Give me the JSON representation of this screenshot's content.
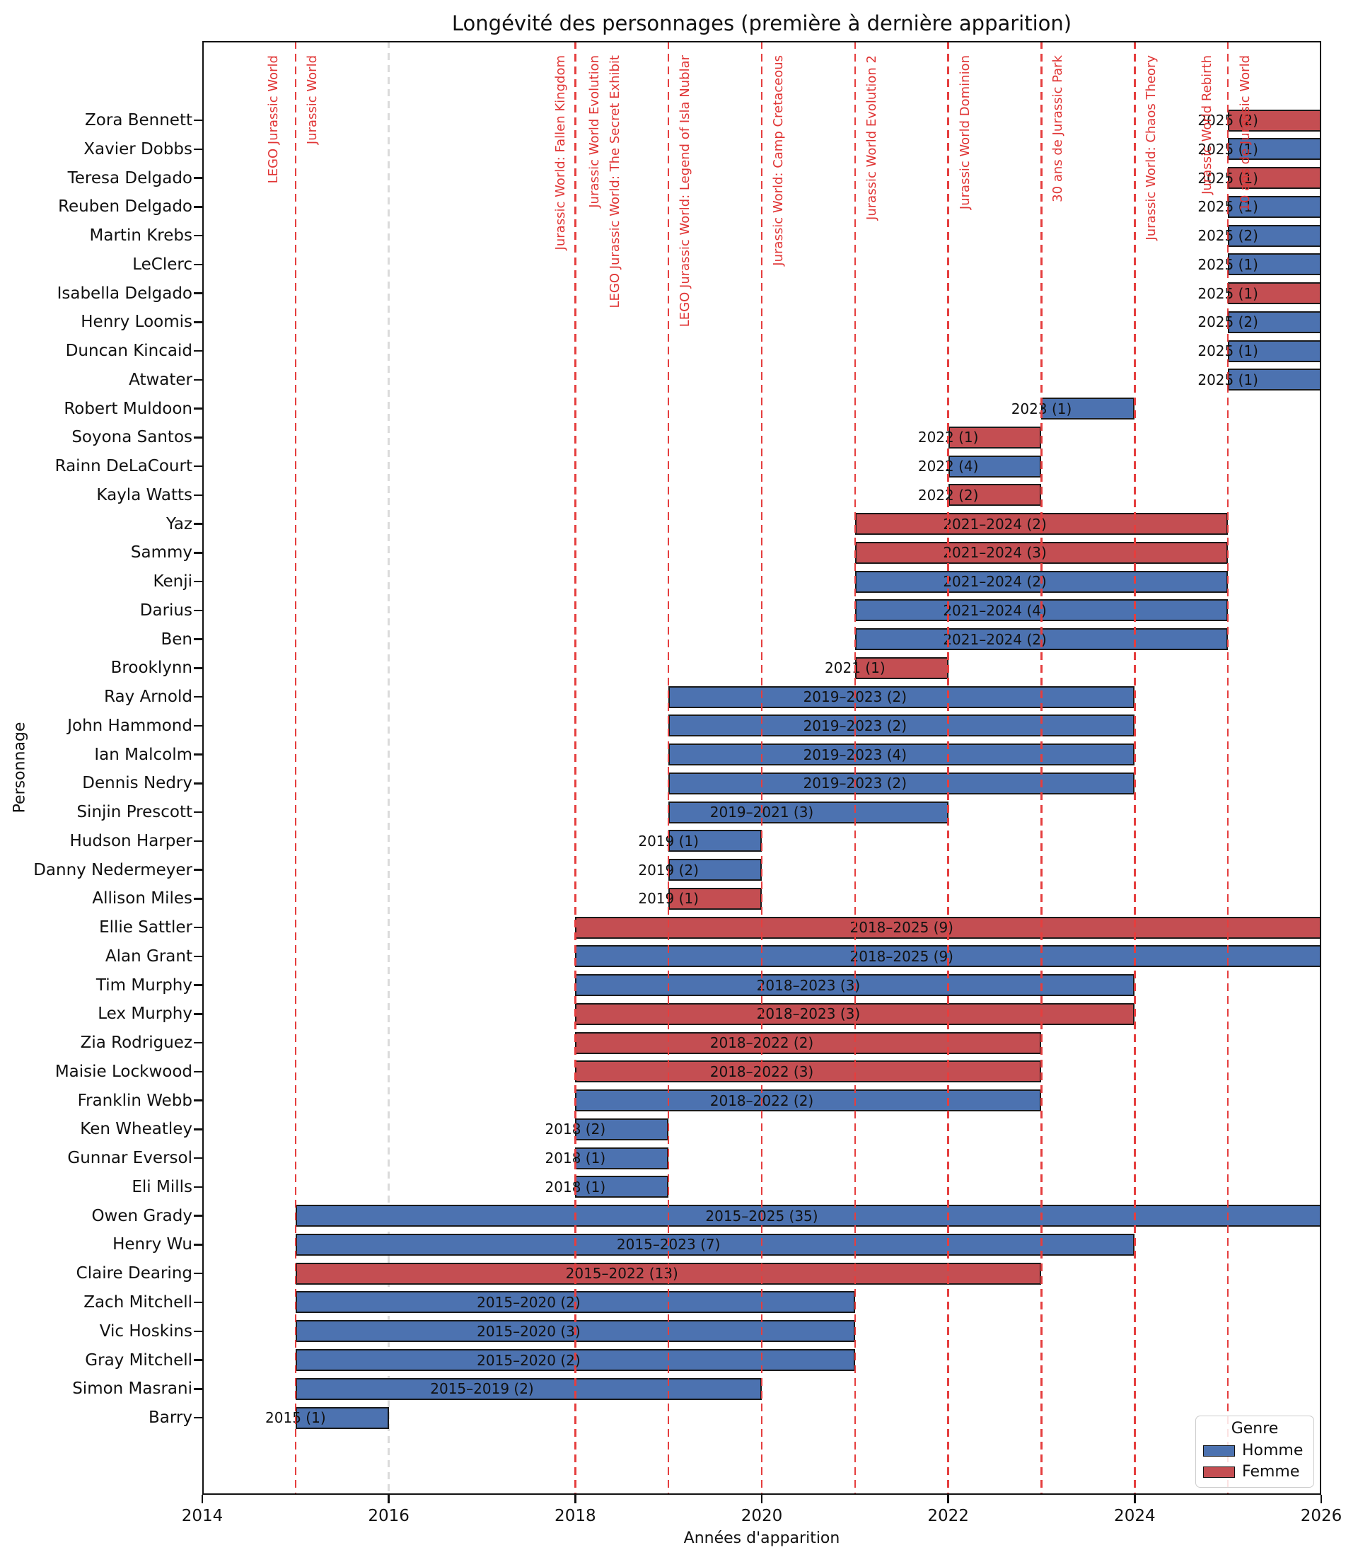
{
  "chart_data": {
    "type": "bar",
    "orientation": "horizontal",
    "title": "Longévité des personnages (première à dernière apparition)",
    "xlabel": "Années d'apparition",
    "ylabel": "Personnage",
    "x_axis": {
      "min": 2014,
      "max": 2026,
      "ticks": [
        2014,
        2016,
        2018,
        2020,
        2022,
        2024,
        2026
      ],
      "gridline_years": [
        2016
      ]
    },
    "colors": {
      "homme": "#4C72B0",
      "femme": "#C44E52",
      "event_line": "#E53E3E",
      "event_text": "#E03535",
      "grid": "#DBDBDB",
      "bar_edge": "#1A1A1A"
    },
    "legend": {
      "title": "Genre",
      "items": [
        {
          "label": "Homme",
          "color": "#4C72B0"
        },
        {
          "label": "Femme",
          "color": "#C44E52"
        }
      ]
    },
    "events": [
      {
        "year": 2015,
        "label": "LEGO Jurassic World",
        "offset": -31
      },
      {
        "year": 2015,
        "label": "Jurassic World",
        "offset": 24
      },
      {
        "year": 2018,
        "label": "Jurassic World: Fallen Kingdom",
        "offset": -20
      },
      {
        "year": 2018,
        "label": "Jurassic World Evolution",
        "offset": 28
      },
      {
        "year": 2018,
        "label": "LEGO Jurassic World: The Secret Exhibit",
        "offset": 57
      },
      {
        "year": 2019,
        "label": "LEGO Jurassic World: Legend of Isla Nublar",
        "offset": 24
      },
      {
        "year": 2020,
        "label": "Jurassic World: Camp Cretaceous",
        "offset": 24
      },
      {
        "year": 2021,
        "label": "Jurassic World Evolution 2",
        "offset": 24
      },
      {
        "year": 2022,
        "label": "Jurassic World Dominion",
        "offset": 24
      },
      {
        "year": 2023,
        "label": "30 ans de Jurassic Park",
        "offset": 24
      },
      {
        "year": 2024,
        "label": "Jurassic World: Chaos Theory",
        "offset": 24
      },
      {
        "year": 2025,
        "label": "Jurassic World Rebirth",
        "offset": -29
      },
      {
        "year": 2025,
        "label": "10 ans de Jurassic World",
        "offset": 25
      }
    ],
    "characters": [
      {
        "name": "Zora Bennett",
        "gender": "Femme",
        "first": 2025,
        "last": 2025,
        "count": 2,
        "label": "2025 (2)"
      },
      {
        "name": "Xavier Dobbs",
        "gender": "Homme",
        "first": 2025,
        "last": 2025,
        "count": 1,
        "label": "2025 (1)"
      },
      {
        "name": "Teresa Delgado",
        "gender": "Femme",
        "first": 2025,
        "last": 2025,
        "count": 1,
        "label": "2025 (1)"
      },
      {
        "name": "Reuben Delgado",
        "gender": "Homme",
        "first": 2025,
        "last": 2025,
        "count": 1,
        "label": "2025 (1)"
      },
      {
        "name": "Martin Krebs",
        "gender": "Homme",
        "first": 2025,
        "last": 2025,
        "count": 2,
        "label": "2025 (2)"
      },
      {
        "name": "LeClerc",
        "gender": "Homme",
        "first": 2025,
        "last": 2025,
        "count": 1,
        "label": "2025 (1)"
      },
      {
        "name": "Isabella Delgado",
        "gender": "Femme",
        "first": 2025,
        "last": 2025,
        "count": 1,
        "label": "2025 (1)"
      },
      {
        "name": "Henry Loomis",
        "gender": "Homme",
        "first": 2025,
        "last": 2025,
        "count": 2,
        "label": "2025 (2)"
      },
      {
        "name": "Duncan Kincaid",
        "gender": "Homme",
        "first": 2025,
        "last": 2025,
        "count": 1,
        "label": "2025 (1)"
      },
      {
        "name": "Atwater",
        "gender": "Homme",
        "first": 2025,
        "last": 2025,
        "count": 1,
        "label": "2025 (1)"
      },
      {
        "name": "Robert Muldoon",
        "gender": "Homme",
        "first": 2023,
        "last": 2023,
        "count": 1,
        "label": "2023 (1)"
      },
      {
        "name": "Soyona Santos",
        "gender": "Femme",
        "first": 2022,
        "last": 2022,
        "count": 1,
        "label": "2022 (1)"
      },
      {
        "name": "Rainn DeLaCourt",
        "gender": "Homme",
        "first": 2022,
        "last": 2022,
        "count": 4,
        "label": "2022 (4)"
      },
      {
        "name": "Kayla Watts",
        "gender": "Femme",
        "first": 2022,
        "last": 2022,
        "count": 2,
        "label": "2022 (2)"
      },
      {
        "name": "Yaz",
        "gender": "Femme",
        "first": 2021,
        "last": 2024,
        "count": 2,
        "label": "2021–2024 (2)"
      },
      {
        "name": "Sammy",
        "gender": "Femme",
        "first": 2021,
        "last": 2024,
        "count": 3,
        "label": "2021–2024 (3)"
      },
      {
        "name": "Kenji",
        "gender": "Homme",
        "first": 2021,
        "last": 2024,
        "count": 2,
        "label": "2021–2024 (2)"
      },
      {
        "name": "Darius",
        "gender": "Homme",
        "first": 2021,
        "last": 2024,
        "count": 4,
        "label": "2021–2024 (4)"
      },
      {
        "name": "Ben",
        "gender": "Homme",
        "first": 2021,
        "last": 2024,
        "count": 2,
        "label": "2021–2024 (2)"
      },
      {
        "name": "Brooklynn",
        "gender": "Femme",
        "first": 2021,
        "last": 2021,
        "count": 1,
        "label": "2021 (1)"
      },
      {
        "name": "Ray Arnold",
        "gender": "Homme",
        "first": 2019,
        "last": 2023,
        "count": 2,
        "label": "2019–2023 (2)"
      },
      {
        "name": "John Hammond",
        "gender": "Homme",
        "first": 2019,
        "last": 2023,
        "count": 2,
        "label": "2019–2023 (2)"
      },
      {
        "name": "Ian Malcolm",
        "gender": "Homme",
        "first": 2019,
        "last": 2023,
        "count": 4,
        "label": "2019–2023 (4)"
      },
      {
        "name": "Dennis Nedry",
        "gender": "Homme",
        "first": 2019,
        "last": 2023,
        "count": 2,
        "label": "2019–2023 (2)"
      },
      {
        "name": "Sinjin Prescott",
        "gender": "Homme",
        "first": 2019,
        "last": 2021,
        "count": 3,
        "label": "2019–2021 (3)"
      },
      {
        "name": "Hudson Harper",
        "gender": "Homme",
        "first": 2019,
        "last": 2019,
        "count": 1,
        "label": "2019 (1)"
      },
      {
        "name": "Danny Nedermeyer",
        "gender": "Homme",
        "first": 2019,
        "last": 2019,
        "count": 2,
        "label": "2019 (2)"
      },
      {
        "name": "Allison Miles",
        "gender": "Femme",
        "first": 2019,
        "last": 2019,
        "count": 1,
        "label": "2019 (1)"
      },
      {
        "name": "Ellie Sattler",
        "gender": "Femme",
        "first": 2018,
        "last": 2025,
        "count": 9,
        "label": "2018–2025 (9)"
      },
      {
        "name": "Alan Grant",
        "gender": "Homme",
        "first": 2018,
        "last": 2025,
        "count": 9,
        "label": "2018–2025 (9)"
      },
      {
        "name": "Tim Murphy",
        "gender": "Homme",
        "first": 2018,
        "last": 2023,
        "count": 3,
        "label": "2018–2023 (3)"
      },
      {
        "name": "Lex Murphy",
        "gender": "Femme",
        "first": 2018,
        "last": 2023,
        "count": 3,
        "label": "2018–2023 (3)"
      },
      {
        "name": "Zia Rodriguez",
        "gender": "Femme",
        "first": 2018,
        "last": 2022,
        "count": 2,
        "label": "2018–2022 (2)"
      },
      {
        "name": "Maisie Lockwood",
        "gender": "Femme",
        "first": 2018,
        "last": 2022,
        "count": 3,
        "label": "2018–2022 (3)"
      },
      {
        "name": "Franklin Webb",
        "gender": "Homme",
        "first": 2018,
        "last": 2022,
        "count": 2,
        "label": "2018–2022 (2)"
      },
      {
        "name": "Ken Wheatley",
        "gender": "Homme",
        "first": 2018,
        "last": 2018,
        "count": 2,
        "label": "2018 (2)"
      },
      {
        "name": "Gunnar Eversol",
        "gender": "Homme",
        "first": 2018,
        "last": 2018,
        "count": 1,
        "label": "2018 (1)"
      },
      {
        "name": "Eli Mills",
        "gender": "Homme",
        "first": 2018,
        "last": 2018,
        "count": 1,
        "label": "2018 (1)"
      },
      {
        "name": "Owen Grady",
        "gender": "Homme",
        "first": 2015,
        "last": 2025,
        "count": 35,
        "label": "2015–2025 (35)"
      },
      {
        "name": "Henry Wu",
        "gender": "Homme",
        "first": 2015,
        "last": 2023,
        "count": 7,
        "label": "2015–2023 (7)"
      },
      {
        "name": "Claire Dearing",
        "gender": "Femme",
        "first": 2015,
        "last": 2022,
        "count": 13,
        "label": "2015–2022 (13)"
      },
      {
        "name": "Zach Mitchell",
        "gender": "Homme",
        "first": 2015,
        "last": 2020,
        "count": 2,
        "label": "2015–2020 (2)"
      },
      {
        "name": "Vic Hoskins",
        "gender": "Homme",
        "first": 2015,
        "last": 2020,
        "count": 3,
        "label": "2015–2020 (3)"
      },
      {
        "name": "Gray Mitchell",
        "gender": "Homme",
        "first": 2015,
        "last": 2020,
        "count": 2,
        "label": "2015–2020 (2)"
      },
      {
        "name": "Simon Masrani",
        "gender": "Homme",
        "first": 2015,
        "last": 2019,
        "count": 2,
        "label": "2015–2019 (2)"
      },
      {
        "name": "Barry",
        "gender": "Homme",
        "first": 2015,
        "last": 2015,
        "count": 1,
        "label": "2015 (1)"
      }
    ]
  }
}
